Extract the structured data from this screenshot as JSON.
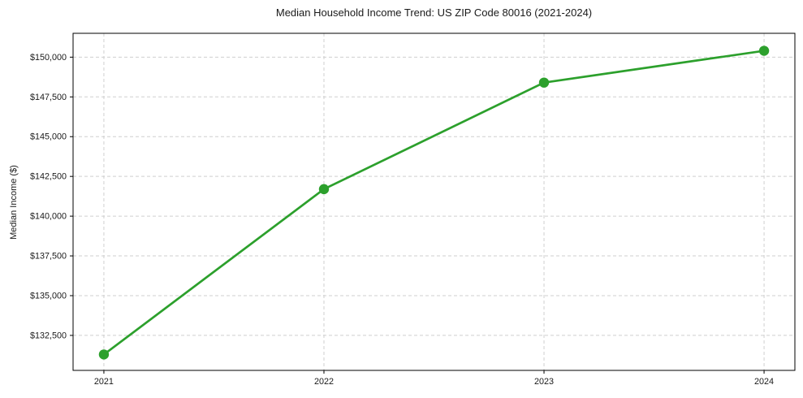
{
  "figure": {
    "background_color": "#ffffff",
    "text_color": "#1a1a1a",
    "spine_color": "#000000"
  },
  "chart_data": {
    "type": "line",
    "title": "Median Household Income Trend: US ZIP Code 80016 (2021-2024)",
    "xlabel": "",
    "ylabel": "Median Income ($)",
    "x": [
      2021,
      2022,
      2023,
      2024
    ],
    "series": [
      {
        "name": "Median Household Income",
        "values": [
          131300,
          141700,
          148400,
          150400
        ],
        "color": "#2ca02c",
        "marker": "circle",
        "line_width": 2.7,
        "marker_radius": 6.2
      }
    ],
    "xlim": [
      2020.86,
      2024.14
    ],
    "ylim": [
      130300,
      151500
    ],
    "xtick_values": [
      2021,
      2022,
      2023,
      2024
    ],
    "xtick_labels": [
      "2021",
      "2022",
      "2023",
      "2024"
    ],
    "ytick_values": [
      132500,
      135000,
      137500,
      140000,
      142500,
      145000,
      147500,
      150000
    ],
    "ytick_labels": [
      "$132,500",
      "$135,000",
      "$137,500",
      "$140,000",
      "$142,500",
      "$145,000",
      "$147,500",
      "$150,000"
    ],
    "grid": true,
    "grid_style": "dashed",
    "grid_color": "#cfcfcf",
    "legend": "none"
  }
}
